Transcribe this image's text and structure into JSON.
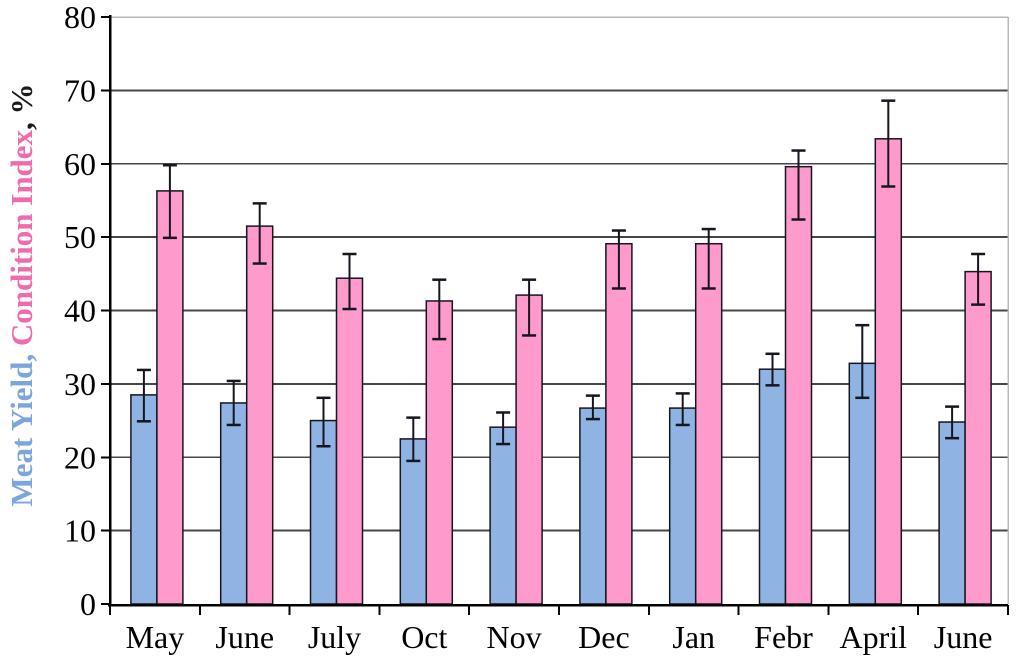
{
  "y_axis_title": {
    "meat_yield_part": "Meat Yield,",
    "condition_index_part": " Condition Index",
    "suffix_part": ", %",
    "meat_yield_color": "#7BA6DC",
    "condition_index_color": "#F06BAD",
    "suffix_color": "#1a1a1a"
  },
  "chart_data": {
    "type": "bar",
    "title": "",
    "ylabel": "Meat Yield, Condition Index, %",
    "xlabel": "",
    "categories": [
      "May",
      "June",
      "July",
      "Oct",
      "Nov",
      "Dec",
      "Jan",
      "Febr",
      "April",
      "June"
    ],
    "ylim": [
      0,
      80
    ],
    "yticks": [
      0,
      10,
      20,
      30,
      40,
      50,
      60,
      70,
      80
    ],
    "grid": true,
    "legend": "none",
    "error_bars": true,
    "series": [
      {
        "name": "Meat Yield",
        "color": "#8FB3E3",
        "values": [
          28.5,
          27.4,
          25.0,
          22.5,
          24.1,
          26.7,
          26.7,
          32.0,
          32.8,
          24.8
        ],
        "whisker_high": [
          31.9,
          30.4,
          28.1,
          25.4,
          26.1,
          28.4,
          28.7,
          34.1,
          38.0,
          26.9
        ],
        "whisker_low": [
          24.9,
          24.4,
          21.5,
          19.5,
          21.8,
          25.2,
          24.4,
          29.8,
          28.1,
          22.6
        ]
      },
      {
        "name": "Condition Index",
        "color": "#FF9BCC",
        "values": [
          56.3,
          51.5,
          44.4,
          41.3,
          42.1,
          49.1,
          49.1,
          59.6,
          63.4,
          45.3
        ],
        "whisker_high": [
          59.8,
          54.6,
          47.7,
          44.2,
          44.2,
          50.9,
          51.1,
          61.8,
          68.6,
          47.7
        ],
        "whisker_low": [
          49.9,
          46.4,
          40.2,
          36.1,
          36.6,
          43.0,
          43.0,
          52.4,
          56.9,
          40.8
        ]
      }
    ]
  },
  "style": {
    "bar_border_color": "#16161f",
    "error_bar_color": "#16161f",
    "gridline_color": "#474747",
    "frame_light_color": "#b8b8b8",
    "axis_color": "#000000",
    "tick_label_color": "#000000",
    "background": "#ffffff"
  }
}
